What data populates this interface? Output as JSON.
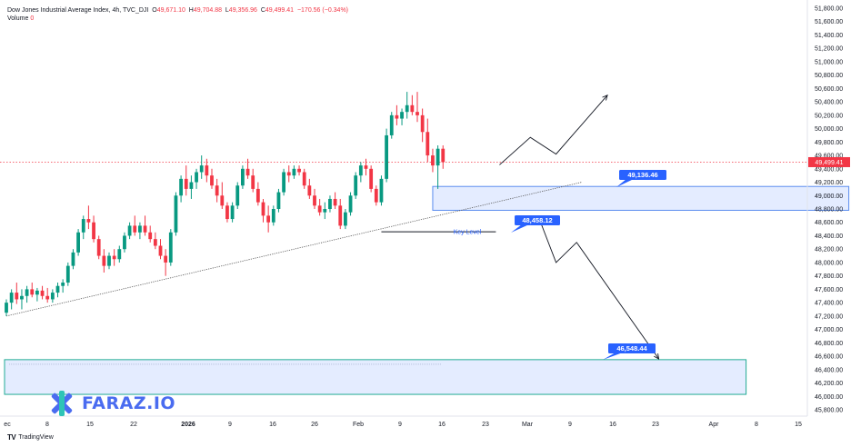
{
  "header": {
    "symbol": "Dow Jones Industrial Average Index, 4h, TVC_DJI",
    "o_label": "O",
    "o_value": "49,671.10",
    "h_label": "H",
    "h_value": "49,704.88",
    "l_label": "L",
    "l_value": "49,356.96",
    "c_label": "C",
    "c_value": "49,499.41",
    "change": "−170.56 (−0.34%)"
  },
  "volume": {
    "label": "Volume",
    "value": "0"
  },
  "footer": {
    "brand": "TradingView"
  },
  "watermark": {
    "text": "FARAZ.IO"
  },
  "colors": {
    "up": "#089981",
    "down": "#f23645",
    "accent": "#2962ff",
    "zone_fill": "#dbe5ff",
    "zone_border": "#2962ff",
    "bottom_zone_border": "#22ab94",
    "watermark": "#4a6cf0"
  },
  "chart_data": {
    "type": "candlestick",
    "timeframe": "4h",
    "y_axis": {
      "ticks": [
        "51,800.00",
        "51,600.00",
        "51,400.00",
        "51,200.00",
        "51,000.00",
        "50,800.00",
        "50,600.00",
        "50,400.00",
        "50,200.00",
        "50,000.00",
        "49,800.00",
        "49,600.00",
        "49,400.00",
        "49,200.00",
        "49,000.00",
        "48,800.00",
        "48,600.00",
        "48,400.00",
        "48,200.00",
        "48,000.00",
        "47,800.00",
        "47,600.00",
        "47,400.00",
        "47,200.00",
        "47,000.00",
        "46,800.00",
        "46,600.00",
        "46,400.00",
        "46,200.00",
        "46,000.00",
        "45,800.00"
      ],
      "range": [
        45700,
        51900
      ]
    },
    "x_axis": {
      "ticks": [
        "ec",
        "8",
        "15",
        "22",
        "2026",
        "9",
        "16",
        "26",
        "Feb",
        "9",
        "16",
        "23",
        "Mar",
        "9",
        "16",
        "23",
        "Apr",
        "8",
        "15"
      ]
    },
    "last_price": 49499.41,
    "last_price_label": "49,499.41",
    "candles": [
      [
        47250,
        47450,
        47200,
        47400
      ],
      [
        47400,
        47600,
        47300,
        47550
      ],
      [
        47550,
        47700,
        47380,
        47450
      ],
      [
        47450,
        47600,
        47300,
        47500
      ],
      [
        47500,
        47650,
        47400,
        47600
      ],
      [
        47600,
        47700,
        47480,
        47520
      ],
      [
        47520,
        47620,
        47420,
        47580
      ],
      [
        47580,
        47650,
        47450,
        47500
      ],
      [
        47500,
        47620,
        47400,
        47450
      ],
      [
        47450,
        47600,
        47400,
        47550
      ],
      [
        47550,
        47700,
        47480,
        47650
      ],
      [
        47650,
        47750,
        47550,
        47700
      ],
      [
        47700,
        48000,
        47650,
        47950
      ],
      [
        47950,
        48200,
        47900,
        48150
      ],
      [
        48150,
        48500,
        48100,
        48450
      ],
      [
        48450,
        48700,
        48350,
        48650
      ],
      [
        48650,
        48850,
        48500,
        48600
      ],
      [
        48600,
        48700,
        48300,
        48350
      ],
      [
        48350,
        48400,
        48050,
        48100
      ],
      [
        48100,
        48200,
        47850,
        47950
      ],
      [
        47950,
        48150,
        47900,
        48100
      ],
      [
        48100,
        48200,
        47950,
        48050
      ],
      [
        48050,
        48250,
        48000,
        48200
      ],
      [
        48200,
        48450,
        48150,
        48400
      ],
      [
        48400,
        48600,
        48350,
        48550
      ],
      [
        48550,
        48700,
        48400,
        48450
      ],
      [
        48450,
        48600,
        48350,
        48550
      ],
      [
        48550,
        48700,
        48400,
        48450
      ],
      [
        48450,
        48550,
        48300,
        48350
      ],
      [
        48350,
        48450,
        48200,
        48250
      ],
      [
        48250,
        48350,
        48050,
        48100
      ],
      [
        48100,
        48200,
        47800,
        48000
      ],
      [
        48000,
        48500,
        47950,
        48450
      ],
      [
        48450,
        49050,
        48400,
        49000
      ],
      [
        49000,
        49300,
        48900,
        49250
      ],
      [
        49250,
        49450,
        49000,
        49100
      ],
      [
        49100,
        49300,
        48950,
        49200
      ],
      [
        49200,
        49400,
        49100,
        49350
      ],
      [
        49350,
        49600,
        49250,
        49450
      ],
      [
        49450,
        49550,
        49200,
        49300
      ],
      [
        49300,
        49400,
        49100,
        49150
      ],
      [
        49150,
        49250,
        48900,
        49000
      ],
      [
        49000,
        49200,
        48800,
        48850
      ],
      [
        48850,
        48900,
        48600,
        48650
      ],
      [
        48650,
        48900,
        48600,
        48850
      ],
      [
        48850,
        49200,
        48800,
        49150
      ],
      [
        49150,
        49450,
        49100,
        49400
      ],
      [
        49400,
        49550,
        49250,
        49300
      ],
      [
        49300,
        49400,
        49050,
        49100
      ],
      [
        49100,
        49200,
        48850,
        48900
      ],
      [
        48900,
        48950,
        48600,
        48700
      ],
      [
        48700,
        48850,
        48450,
        48600
      ],
      [
        48600,
        48850,
        48550,
        48800
      ],
      [
        48800,
        49100,
        48750,
        49050
      ],
      [
        49050,
        49400,
        49000,
        49350
      ],
      [
        49350,
        49450,
        49200,
        49300
      ],
      [
        49300,
        49450,
        49250,
        49400
      ],
      [
        49400,
        49450,
        49300,
        49350
      ],
      [
        49350,
        49400,
        49100,
        49150
      ],
      [
        49150,
        49250,
        48950,
        49000
      ],
      [
        49000,
        49100,
        48800,
        48850
      ],
      [
        48850,
        48950,
        48700,
        48750
      ],
      [
        48750,
        48900,
        48650,
        48800
      ],
      [
        48800,
        49000,
        48750,
        48950
      ],
      [
        48950,
        49050,
        48800,
        48850
      ],
      [
        48850,
        48950,
        48500,
        48550
      ],
      [
        48550,
        48800,
        48500,
        48750
      ],
      [
        48750,
        49050,
        48700,
        49000
      ],
      [
        49000,
        49350,
        48950,
        49300
      ],
      [
        49300,
        49500,
        49200,
        49450
      ],
      [
        49450,
        49550,
        49300,
        49400
      ],
      [
        49400,
        49450,
        49050,
        49100
      ],
      [
        49100,
        49150,
        48850,
        48900
      ],
      [
        48900,
        49300,
        48850,
        49250
      ],
      [
        49250,
        50000,
        49200,
        49900
      ],
      [
        49900,
        50250,
        49850,
        50200
      ],
      [
        50200,
        50350,
        50050,
        50150
      ],
      [
        50150,
        50300,
        50050,
        50250
      ],
      [
        50250,
        50550,
        50150,
        50350
      ],
      [
        50350,
        50500,
        50200,
        50250
      ],
      [
        50250,
        50550,
        50100,
        50200
      ],
      [
        50200,
        50300,
        49800,
        49950
      ],
      [
        49950,
        50150,
        49500,
        49600
      ],
      [
        49600,
        49700,
        49350,
        49450
      ],
      [
        49450,
        49750,
        49100,
        49700
      ],
      [
        49700,
        49750,
        49400,
        49500
      ]
    ],
    "annotations": {
      "trendline": {
        "from": [
          0,
          47200
        ],
        "to": [
          112,
          49200
        ],
        "style": "dotted"
      },
      "resistance_zone": {
        "from_index": 83,
        "to_index": 164,
        "top": 49136.46,
        "bottom": 48780,
        "label": "49,136.46"
      },
      "key_level": {
        "from_index": 73,
        "to_index": 96,
        "value": 48458.12,
        "label": "Key Level",
        "price_label": "48,458.12"
      },
      "target_zone": {
        "from_index": 0,
        "to_index": 144,
        "top": 46548.44,
        "bottom": 46030,
        "label": "46,548.44"
      },
      "bull_path": [
        [
          96,
          49460
        ],
        [
          102,
          49870
        ],
        [
          107,
          49620
        ],
        [
          117,
          50500
        ]
      ],
      "bear_path": [
        [
          104,
          48600
        ],
        [
          107,
          48000
        ],
        [
          111,
          48300
        ],
        [
          127,
          46560
        ]
      ]
    }
  }
}
